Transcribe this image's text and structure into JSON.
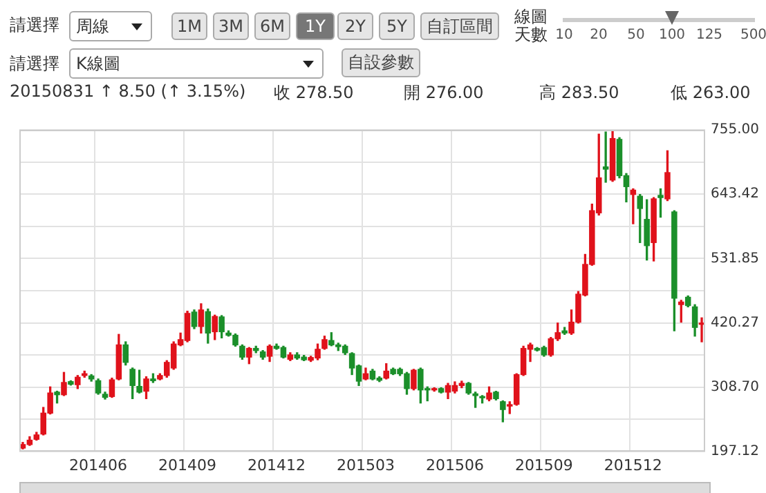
{
  "chart_data": {
    "type": "candlestick",
    "categories": [
      null,
      null,
      null,
      null,
      null,
      null,
      null,
      null,
      null,
      null,
      null,
      "201406",
      null,
      null,
      null,
      null,
      null,
      null,
      null,
      null,
      null,
      null,
      null,
      null,
      "201409",
      null,
      null,
      null,
      null,
      null,
      null,
      null,
      null,
      null,
      null,
      null,
      null,
      "201412",
      null,
      null,
      null,
      null,
      null,
      null,
      null,
      null,
      null,
      null,
      null,
      null,
      "201503",
      null,
      null,
      null,
      null,
      null,
      null,
      null,
      null,
      null,
      null,
      null,
      null,
      "201506",
      null,
      null,
      null,
      null,
      null,
      null,
      null,
      null,
      null,
      null,
      null,
      null,
      "201509",
      null,
      null,
      null,
      null,
      null,
      null,
      null,
      null,
      null,
      null,
      null,
      null,
      "201512",
      null,
      null,
      null,
      null,
      null,
      null,
      null,
      null,
      null,
      null
    ],
    "ohlc": [
      [
        203.2,
        213,
        201.7,
        209.3
      ],
      [
        209.3,
        222.9,
        207.8,
        216.9
      ],
      [
        218.4,
        230.5,
        216.9,
        226
      ],
      [
        227.5,
        273.7,
        226,
        263.8
      ],
      [
        263.8,
        309.3,
        262.3,
        298.7
      ],
      [
        300.2,
        301.8,
        281.3,
        295.7
      ],
      [
        295.7,
        334.4,
        294.2,
        316.9
      ],
      [
        318.4,
        319.9,
        312.4,
        313.9
      ],
      [
        313.1,
        329,
        306.3,
        326
      ],
      [
        329,
        336.6,
        326,
        332.1
      ],
      [
        328.3,
        330.6,
        319.2,
        323
      ],
      [
        320,
        323,
        296.5,
        298.7
      ],
      [
        296.5,
        300.2,
        288.1,
        291.1
      ],
      [
        292.6,
        324.5,
        291.1,
        321.5
      ],
      [
        323,
        400.3,
        321.5,
        382.1
      ],
      [
        382.1,
        387.4,
        347.2,
        351.8
      ],
      [
        339.7,
        342,
        288.9,
        311.6
      ],
      [
        310.1,
        338.2,
        298.7,
        300.2
      ],
      [
        301.8,
        326.8,
        288.9,
        323
      ],
      [
        323,
        332.1,
        316.9,
        320
      ],
      [
        323,
        332.1,
        321.5,
        329
      ],
      [
        329,
        354.8,
        326,
        351.8
      ],
      [
        342,
        387.4,
        339.7,
        383.6
      ],
      [
        382.1,
        402.6,
        380.6,
        391.2
      ],
      [
        389.7,
        440.5,
        387.4,
        436.7
      ],
      [
        439,
        442.7,
        410.2,
        414
      ],
      [
        414,
        453.4,
        402.6,
        442.7
      ],
      [
        439.7,
        444.3,
        385.1,
        402.6
      ],
      [
        404.9,
        433.7,
        391.2,
        431.4
      ],
      [
        430.6,
        432.9,
        394.2,
        404.9
      ],
      [
        402.6,
        406.4,
        397.3,
        398.8
      ],
      [
        398.8,
        401.1,
        379.8,
        382.1
      ],
      [
        379.8,
        382.1,
        357.1,
        360.9
      ],
      [
        360.9,
        377.5,
        349.5,
        376
      ],
      [
        376,
        379.8,
        368.5,
        372.3
      ],
      [
        370,
        372.3,
        357.1,
        360.9
      ],
      [
        362.4,
        382.1,
        353.3,
        379.8
      ],
      [
        379.8,
        383.6,
        374.5,
        376
      ],
      [
        377.5,
        379.8,
        359.4,
        360.9
      ],
      [
        357.1,
        368.5,
        354.8,
        364.7
      ],
      [
        364.7,
        368.5,
        357.1,
        359.4
      ],
      [
        360.9,
        363.9,
        354.8,
        356.3
      ],
      [
        355.6,
        362.4,
        353.3,
        360.2
      ],
      [
        359.4,
        383.6,
        356.3,
        374.5
      ],
      [
        376,
        397.3,
        374.5,
        391.2
      ],
      [
        389.7,
        403.3,
        380.6,
        382.1
      ],
      [
        382.1,
        385.1,
        372.3,
        379.1
      ],
      [
        379.8,
        382.1,
        365.4,
        368.5
      ],
      [
        367,
        368.5,
        330.6,
        342
      ],
      [
        345.7,
        347.2,
        311.6,
        319.2
      ],
      [
        323,
        341.9,
        321.5,
        332.1
      ],
      [
        336.6,
        339.7,
        321.5,
        323
      ],
      [
        324.5,
        326.8,
        318.4,
        320.7
      ],
      [
        324.5,
        349.5,
        323,
        336.6
      ],
      [
        339.7,
        341.9,
        330.6,
        332.1
      ],
      [
        339.7,
        341.9,
        329,
        332.1
      ],
      [
        332.1,
        334.4,
        296.5,
        306.3
      ],
      [
        306.3,
        339.7,
        304,
        338.2
      ],
      [
        339.7,
        341.9,
        281.3,
        304
      ],
      [
        306.3,
        309.3,
        285.1,
        304
      ],
      [
        304,
        307.8,
        301.8,
        306.3
      ],
      [
        306.3,
        307.8,
        298.7,
        300.2
      ],
      [
        300.2,
        315.4,
        288.9,
        311.6
      ],
      [
        302,
        318,
        298.7,
        311.6
      ],
      [
        311.6,
        319.2,
        307.8,
        315.4
      ],
      [
        315.4,
        316.9,
        296.5,
        298.7
      ],
      [
        297.2,
        300.2,
        273.7,
        294.2
      ],
      [
        292.6,
        294.2,
        281.3,
        290.4
      ],
      [
        288.1,
        309.3,
        285.1,
        298.7
      ],
      [
        300.2,
        301.7,
        286.6,
        288.9
      ],
      [
        283.6,
        285.1,
        248.7,
        270
      ],
      [
        276,
        283.5,
        263,
        278.5
      ],
      [
        279,
        332.1,
        277.5,
        330.6
      ],
      [
        330.6,
        379.8,
        329,
        376
      ],
      [
        374.5,
        385.1,
        353.3,
        382.1
      ],
      [
        376,
        377.5,
        371.5,
        373
      ],
      [
        377.5,
        379.8,
        362.4,
        364.7
      ],
      [
        364.7,
        395,
        362.4,
        392.7
      ],
      [
        392.7,
        420,
        389.7,
        403.3
      ],
      [
        406.4,
        412.4,
        400.3,
        402.6
      ],
      [
        402.6,
        442.7,
        400.3,
        421.5
      ],
      [
        421.5,
        474.6,
        420,
        470
      ],
      [
        468.5,
        539,
        467,
        521.6
      ],
      [
        521.6,
        626.2,
        520.1,
        614.8
      ],
      [
        611,
        747.5,
        607.2,
        671.7
      ],
      [
        690.7,
        751.2,
        664.1,
        686.8
      ],
      [
        667.9,
        755,
        665.6,
        739.9
      ],
      [
        738.4,
        741.4,
        671.7,
        675.5
      ],
      [
        675.5,
        679.2,
        630,
        656.5
      ],
      [
        642.9,
        652.7,
        592.1,
        650.4
      ],
      [
        639.8,
        642.9,
        559.5,
        618.6
      ],
      [
        599.7,
        633.8,
        529.2,
        554.2
      ],
      [
        559.5,
        637.5,
        527.6,
        635.3
      ],
      [
        641.3,
        652.7,
        603.5,
        637.5
      ],
      [
        635.3,
        718.7,
        632.2,
        680.8
      ],
      [
        612.5,
        614.8,
        406.4,
        463.2
      ],
      [
        452,
        459.4,
        421.5,
        456.4
      ],
      [
        464.7,
        467,
        448,
        450.3
      ],
      [
        448,
        451.8,
        397.3,
        412.4
      ],
      [
        417.7,
        429,
        387.4,
        420
      ]
    ],
    "colors": [
      "#e0121b",
      "#e0121b",
      "#e0121b",
      "#e0121b",
      "#e0121b",
      "#1b8f2a",
      "#e0121b",
      "#1b8f2a",
      "#e0121b",
      "#e0121b",
      "#1b8f2a",
      "#1b8f2a",
      "#1b8f2a",
      "#e0121b",
      "#e0121b",
      "#1b8f2a",
      "#1b8f2a",
      "#1b8f2a",
      "#e0121b",
      "#1b8f2a",
      "#e0121b",
      "#e0121b",
      "#e0121b",
      "#e0121b",
      "#e0121b",
      "#1b8f2a",
      "#e0121b",
      "#1b8f2a",
      "#e0121b",
      "#1b8f2a",
      "#1b8f2a",
      "#1b8f2a",
      "#1b8f2a",
      "#e0121b",
      "#1b8f2a",
      "#1b8f2a",
      "#e0121b",
      "#1b8f2a",
      "#1b8f2a",
      "#e0121b",
      "#1b8f2a",
      "#1b8f2a",
      "#e0121b",
      "#e0121b",
      "#e0121b",
      "#1b8f2a",
      "#1b8f2a",
      "#1b8f2a",
      "#1b8f2a",
      "#1b8f2a",
      "#e0121b",
      "#1b8f2a",
      "#1b8f2a",
      "#e0121b",
      "#1b8f2a",
      "#1b8f2a",
      "#1b8f2a",
      "#e0121b",
      "#1b8f2a",
      "#1b8f2a",
      "#e0121b",
      "#1b8f2a",
      "#e0121b",
      "#e0121b",
      "#e0121b",
      "#1b8f2a",
      "#1b8f2a",
      "#1b8f2a",
      "#e0121b",
      "#1b8f2a",
      "#1b8f2a",
      "#e0121b",
      "#e0121b",
      "#e0121b",
      "#e0121b",
      "#1b8f2a",
      "#1b8f2a",
      "#e0121b",
      "#e0121b",
      "#1b8f2a",
      "#e0121b",
      "#e0121b",
      "#e0121b",
      "#e0121b",
      "#e0121b",
      "#1b8f2a",
      "#e0121b",
      "#1b8f2a",
      "#1b8f2a",
      "#e0121b",
      "#1b8f2a",
      "#1b8f2a",
      "#e0121b",
      "#1b8f2a",
      "#e0121b",
      "#1b8f2a",
      "#e0121b",
      "#1b8f2a",
      "#1b8f2a",
      "#e0121b"
    ],
    "ylim": [
      197.12,
      755
    ],
    "yticks": [
      {
        "value": 197.12,
        "label": "197.12"
      },
      {
        "value": 252.91,
        "label": null
      },
      {
        "value": 308.7,
        "label": "308.70"
      },
      {
        "value": 364.49,
        "label": null
      },
      {
        "value": 420.27,
        "label": "420.27"
      },
      {
        "value": 476.06,
        "label": null
      },
      {
        "value": 531.85,
        "label": "531.85"
      },
      {
        "value": 587.64,
        "label": null
      },
      {
        "value": 643.42,
        "label": "643.42"
      },
      {
        "value": 699.21,
        "label": null
      },
      {
        "value": 755,
        "label": "755.00"
      }
    ],
    "grid": true,
    "legend": false,
    "annotations": [
      "請選擇",
      "周線",
      "1M",
      "3M",
      "6M",
      "1Y",
      "2Y",
      "5Y",
      "自訂區間",
      "線圖",
      "天數",
      "10",
      "20",
      "50",
      "100",
      "125",
      "500",
      "請選擇",
      "K線圖",
      "自設參數",
      "20150831 ↑ 8.50 (↑ 3.15%)",
      "收 278.50",
      "開 276.00",
      "高 283.50",
      "低 263.00"
    ]
  }
}
